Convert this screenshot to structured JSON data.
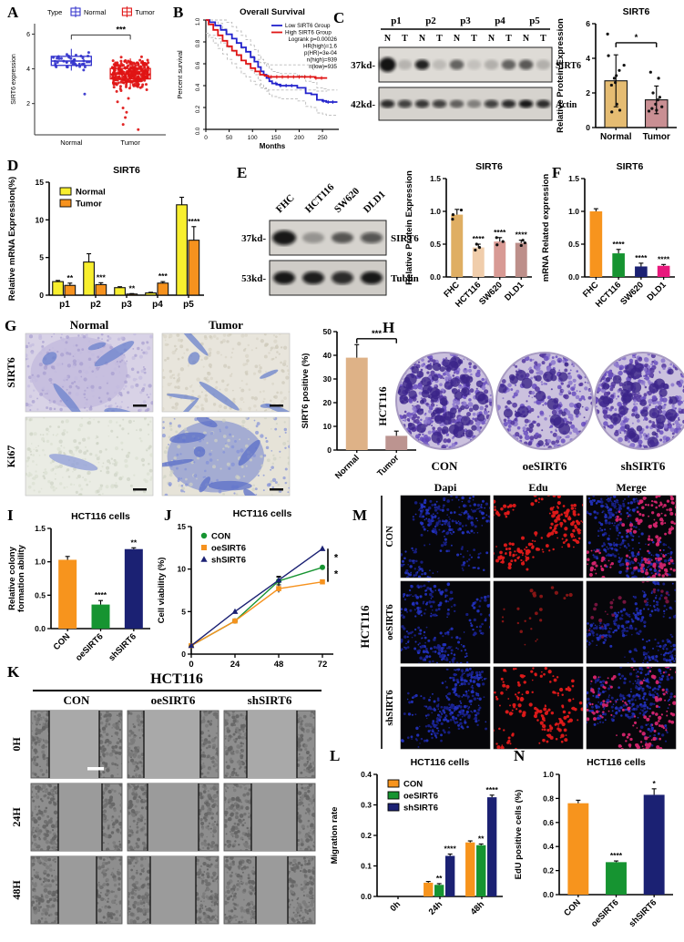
{
  "figure": {
    "bg": "#ffffff"
  },
  "panels": {
    "A": {
      "label": "A",
      "chart_data": {
        "type": "box-scatter",
        "legend_title": "Type",
        "ylabel": "SIRT6 expression",
        "yticks": [
          2,
          4,
          6
        ],
        "ylim": [
          0.2,
          6.6
        ],
        "sig": "***",
        "groups": [
          {
            "name": "Normal",
            "color": "#3333cc",
            "n": 42,
            "median": 4.45,
            "q1": 4.2,
            "q3": 4.72,
            "lo": 3.9,
            "hi": 5.15,
            "sd": 0.32,
            "outliers": [
              2.55
            ]
          },
          {
            "name": "Tumor",
            "color": "#e01414",
            "n": 300,
            "median": 3.7,
            "q1": 3.42,
            "q3": 4.02,
            "lo": 2.9,
            "hi": 4.6,
            "sd": 0.5,
            "outliers": [
              1.75,
              1.5,
              1.2,
              0.8,
              0.5,
              2.1,
              2.3
            ]
          }
        ]
      }
    },
    "B": {
      "label": "B",
      "chart_data": {
        "type": "survival",
        "title": "Overall Survival",
        "xlabel": "Months",
        "ylabel": "Percent survival",
        "xticks": [
          0,
          50,
          100,
          150,
          200,
          250
        ],
        "yticks": [
          0,
          0.2,
          0.4,
          0.6,
          0.8,
          1
        ],
        "xlim": [
          0,
          285
        ],
        "legend": [
          {
            "label": "Low SIRT6 Group",
            "color": "#2222cc"
          },
          {
            "label": "High SIRT6 Group",
            "color": "#e01414"
          }
        ],
        "stats": [
          "Logrank p=0.00026",
          "HR(high)=1.6",
          "p(HR)=3e-04",
          "n(high)=939",
          "n(low)=935"
        ],
        "series": [
          {
            "name": "Low SIRT6 Group",
            "color": "#2222cc",
            "points": [
              [
                0,
                1
              ],
              [
                8,
                0.98
              ],
              [
                20,
                0.95
              ],
              [
                32,
                0.91
              ],
              [
                44,
                0.87
              ],
              [
                56,
                0.83
              ],
              [
                66,
                0.79
              ],
              [
                76,
                0.75
              ],
              [
                86,
                0.71
              ],
              [
                96,
                0.66
              ],
              [
                104,
                0.62
              ],
              [
                112,
                0.57
              ],
              [
                118,
                0.53
              ],
              [
                124,
                0.5
              ],
              [
                130,
                0.47
              ],
              [
                136,
                0.44
              ],
              [
                142,
                0.42
              ],
              [
                152,
                0.41
              ],
              [
                160,
                0.4
              ],
              [
                182,
                0.4
              ],
              [
                196,
                0.38
              ],
              [
                214,
                0.33
              ],
              [
                226,
                0.32
              ],
              [
                238,
                0.27
              ],
              [
                250,
                0.26
              ],
              [
                258,
                0.25
              ],
              [
                282,
                0.25
              ]
            ]
          },
          {
            "name": "High SIRT6 Group",
            "color": "#e01414",
            "points": [
              [
                0,
                1
              ],
              [
                6,
                0.96
              ],
              [
                16,
                0.91
              ],
              [
                26,
                0.86
              ],
              [
                36,
                0.81
              ],
              [
                46,
                0.76
              ],
              [
                56,
                0.72
              ],
              [
                66,
                0.68
              ],
              [
                76,
                0.63
              ],
              [
                86,
                0.6
              ],
              [
                96,
                0.56
              ],
              [
                106,
                0.53
              ],
              [
                116,
                0.5
              ],
              [
                126,
                0.49
              ],
              [
                134,
                0.48
              ],
              [
                160,
                0.48
              ],
              [
                200,
                0.48
              ],
              [
                235,
                0.47
              ],
              [
                260,
                0.47
              ]
            ]
          }
        ]
      }
    },
    "C": {
      "label": "C",
      "blot": {
        "group_labels": [
          "p1",
          "p2",
          "p3",
          "p4",
          "p5"
        ],
        "lane_labels": [
          "N",
          "T",
          "N",
          "T",
          "N",
          "T",
          "N",
          "T",
          "N",
          "T"
        ],
        "rows": [
          {
            "left": "37kd-",
            "right": "SIRT6",
            "bands": [
              0.97,
              0.18,
              0.9,
              0.15,
              0.55,
              0.12,
              0.2,
              0.55,
              0.6,
              0.2
            ]
          },
          {
            "left": "42kd-",
            "right": "Actin",
            "bands": [
              0.85,
              0.75,
              0.8,
              0.75,
              0.55,
              0.4,
              0.75,
              0.85,
              0.95,
              0.85
            ]
          }
        ]
      },
      "chart_data": {
        "type": "bar",
        "title": "SIRT6",
        "ylabel": "Relative Protein Expression",
        "ylim": [
          0,
          6
        ],
        "yticks": [
          0,
          2,
          4,
          6
        ],
        "categories": [
          "Normal",
          "Tumor"
        ],
        "series": [
          {
            "colors": [
              "#e5bc72",
              "#c98f93"
            ],
            "values": [
              2.7,
              1.6
            ],
            "errors": [
              1.5,
              0.8
            ]
          }
        ],
        "scatter": [
          [
            5.4,
            4.15,
            3.6,
            3.3,
            3.0,
            2.85,
            2.6,
            2.45,
            1.35,
            1.0,
            0.9
          ],
          [
            3.2,
            2.85,
            2.0,
            1.75,
            1.6,
            1.35,
            1.2,
            1.1,
            1.0,
            0.95
          ]
        ],
        "bracket": {
          "from": 0,
          "to": 1,
          "y": 4.9,
          "label": "*"
        }
      }
    },
    "D": {
      "label": "D",
      "chart_data": {
        "type": "bar",
        "title": "SIRT6",
        "ylabel": "Relative mRNA Expression(%)",
        "ylim": [
          0,
          15
        ],
        "yticks": [
          0,
          5,
          10,
          15
        ],
        "categories": [
          "p1",
          "p2",
          "p3",
          "p4",
          "p5"
        ],
        "legend": true,
        "series": [
          {
            "name": "Normal",
            "color": "#f8ef2e",
            "values": [
              1.8,
              4.4,
              1.0,
              0.3,
              12.0
            ],
            "errors": [
              0.15,
              1.1,
              0.12,
              0.08,
              1.0
            ]
          },
          {
            "name": "Tumor",
            "color": "#f6921e",
            "values": [
              1.3,
              1.4,
              0.15,
              1.6,
              7.3
            ],
            "errors": [
              0.3,
              0.25,
              0.06,
              0.2,
              1.8
            ],
            "sigs": [
              "**",
              "***",
              "**",
              "***",
              "****"
            ]
          }
        ]
      }
    },
    "E": {
      "label": "E",
      "blot": {
        "lane_labels": [
          "FHC",
          "HCT116",
          "SW620",
          "DLD1"
        ],
        "rows": [
          {
            "left": "37kd-",
            "right": "SIRT6",
            "bands": [
              0.95,
              0.3,
              0.6,
              0.65
            ]
          },
          {
            "left": "53kd-",
            "right": "Tublin",
            "bands": [
              0.95,
              0.92,
              0.85,
              0.95
            ]
          }
        ]
      },
      "chart_data": {
        "type": "bar",
        "title": "SIRT6",
        "ylabel": "Relative Protein Expression",
        "ylim": [
          0,
          1.5
        ],
        "yticks": [
          0,
          0.5,
          1,
          1.5
        ],
        "dec": 1,
        "rot": true,
        "categories": [
          "FHC",
          "HCT116",
          "SW620",
          "DLD1"
        ],
        "series": [
          {
            "colors": [
              "#dfae63",
              "#f0cdab",
              "#d89a94",
              "#bd8f8a"
            ],
            "values": [
              0.95,
              0.45,
              0.54,
              0.52
            ],
            "errors": [
              0.08,
              0.05,
              0.06,
              0.04
            ],
            "sigs": [
              null,
              "****",
              "****",
              "****"
            ]
          }
        ],
        "scatter": [
          [
            0.88,
            0.95,
            1.02
          ],
          [
            0.41,
            0.45,
            0.5
          ],
          [
            0.49,
            0.54,
            0.6
          ],
          [
            0.48,
            0.52,
            0.56
          ]
        ]
      }
    },
    "F": {
      "label": "F",
      "chart_data": {
        "type": "bar",
        "title": "SIRT6",
        "ylabel": "mRNA Related expression",
        "ylim": [
          0,
          1.5
        ],
        "yticks": [
          0,
          0.5,
          1,
          1.5
        ],
        "dec": 1,
        "rot": true,
        "categories": [
          "FHC",
          "HCT116",
          "SW620",
          "DLD1"
        ],
        "series": [
          {
            "colors": [
              "#f7941d",
              "#169431",
              "#1b2173",
              "#e8197d"
            ],
            "values": [
              1.0,
              0.36,
              0.16,
              0.17
            ],
            "errors": [
              0.04,
              0.06,
              0.05,
              0.02
            ],
            "sigs": [
              null,
              "****",
              "****",
              "****"
            ]
          }
        ]
      }
    },
    "G": {
      "label": "G",
      "image_grid": {
        "col_headers": [
          "Normal",
          "Tumor"
        ],
        "row_headers": [
          "SIRT6",
          "Ki67"
        ]
      },
      "chart_data": {
        "type": "bar",
        "ylabel": "SIRT6 positive (%)",
        "ylim": [
          0,
          50
        ],
        "yticks": [
          0,
          10,
          20,
          30,
          40,
          50
        ],
        "rot": true,
        "categories": [
          "Normal",
          "Tumor"
        ],
        "series": [
          {
            "colors": [
              "#deb287",
              "#bc9490"
            ],
            "values": [
              39,
              6
            ],
            "errors": [
              5.5,
              2
            ]
          }
        ],
        "bracket": {
          "from": 0,
          "to": 1,
          "y": 47,
          "label": "***"
        }
      }
    },
    "H": {
      "label": "H",
      "cell_line": "HCT116",
      "conditions": [
        "CON",
        "oeSIRT6",
        "shSIRT6"
      ]
    },
    "I": {
      "label": "I",
      "chart_data": {
        "type": "bar",
        "title": "HCT116 cells",
        "ylabel": [
          "Relative colony",
          "formation ability"
        ],
        "ylim": [
          0,
          1.5
        ],
        "yticks": [
          0,
          0.5,
          1,
          1.5
        ],
        "dec": 1,
        "rot": true,
        "categories": [
          "CON",
          "oeSIRT6",
          "shSIRT6"
        ],
        "series": [
          {
            "colors": [
              "#f7941d",
              "#169431",
              "#1b2173"
            ],
            "values": [
              1.03,
              0.36,
              1.19
            ],
            "errors": [
              0.05,
              0.06,
              0.02
            ],
            "sigs": [
              null,
              "****",
              "**"
            ]
          }
        ]
      }
    },
    "J": {
      "label": "J",
      "chart_data": {
        "type": "line",
        "title": "HCT116 cells",
        "ylabel": "Cell viability (%)",
        "ylim": [
          0,
          15
        ],
        "yticks": [
          0,
          5,
          10,
          15
        ],
        "x": [
          0,
          24,
          48,
          72
        ],
        "xlim": [
          0,
          78
        ],
        "series": [
          {
            "name": "CON",
            "color": "#169431",
            "marker": "circle",
            "values": [
              1,
              3.9,
              8.6,
              10.2
            ]
          },
          {
            "name": "oeSIRT6",
            "color": "#f6921e",
            "marker": "square",
            "values": [
              1,
              3.9,
              7.7,
              8.5
            ]
          },
          {
            "name": "shSIRT6",
            "color": "#1b2173",
            "marker": "triangle",
            "values": [
              1,
              5.0,
              8.7,
              12.4
            ]
          }
        ],
        "err_at": 2,
        "err": 0.45,
        "brackets": [
          {
            "hi": 12.4,
            "lo": 10.2,
            "label": "*"
          },
          {
            "hi": 10.2,
            "lo": 8.5,
            "label": "*"
          }
        ]
      }
    },
    "K": {
      "label": "K",
      "title": "HCT116",
      "col_headers": [
        "CON",
        "oeSIRT6",
        "shSIRT6"
      ],
      "row_headers": [
        "0H",
        "24H",
        "48H"
      ]
    },
    "L": {
      "label": "L",
      "chart_data": {
        "type": "bar",
        "title": "HCT116 cells",
        "ylabel": "Migration rate",
        "ylim": [
          0,
          0.4
        ],
        "yticks": [
          0,
          0.1,
          0.2,
          0.3,
          0.4
        ],
        "dec": 1,
        "rot": true,
        "legend": true,
        "categories": [
          "0h",
          "24h",
          "48h"
        ],
        "series": [
          {
            "name": "CON",
            "color": "#f7941d",
            "values": [
              0,
              0.045,
              0.177
            ],
            "errors": [
              0,
              0.004,
              0.005
            ]
          },
          {
            "name": "oeSIRT6",
            "color": "#169431",
            "values": [
              0,
              0.038,
              0.168
            ],
            "errors": [
              0,
              0.004,
              0.004
            ],
            "sigs": [
              null,
              "**",
              "**"
            ]
          },
          {
            "name": "shSIRT6",
            "color": "#1b2173",
            "values": [
              0,
              0.133,
              0.325
            ],
            "errors": [
              0,
              0.006,
              0.007
            ],
            "sigs": [
              null,
              "****",
              "****"
            ]
          }
        ]
      }
    },
    "M": {
      "label": "M",
      "cell_line": "HCT116",
      "col_headers": [
        "Dapi",
        "Edu",
        "Merge"
      ],
      "row_headers": [
        "CON",
        "oeSIRT6",
        "shSIRT6"
      ]
    },
    "N": {
      "label": "N",
      "chart_data": {
        "type": "bar",
        "title": "HCT116 cells",
        "ylabel": "EdU positive cells (%)",
        "ylim": [
          0,
          1
        ],
        "yticks": [
          0,
          0.2,
          0.4,
          0.6,
          0.8,
          1
        ],
        "dec": 1,
        "rot": true,
        "categories": [
          "CON",
          "oeSIRT6",
          "shSIRT6"
        ],
        "series": [
          {
            "colors": [
              "#f7941d",
              "#169431",
              "#1b2173"
            ],
            "values": [
              0.76,
              0.27,
              0.83
            ],
            "errors": [
              0.025,
              0.01,
              0.05
            ],
            "sigs": [
              null,
              "****",
              "*"
            ]
          }
        ]
      }
    }
  }
}
